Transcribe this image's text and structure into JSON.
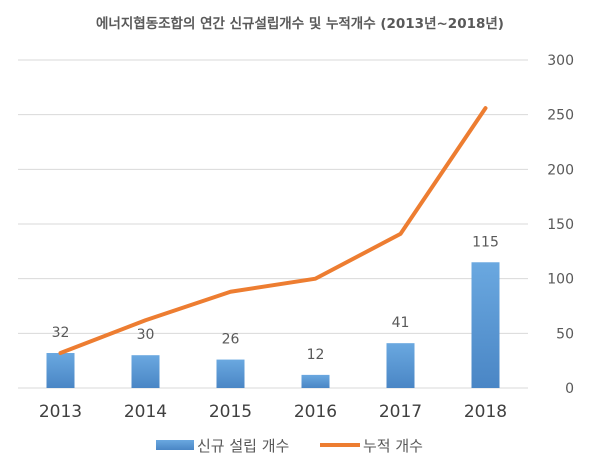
{
  "chart_data": {
    "type": "bar",
    "title": "에너지협동조합의 연간 신규설립개수 및 누적개수 (2013년~2018년)",
    "categories": [
      "2013",
      "2014",
      "2015",
      "2016",
      "2017",
      "2018"
    ],
    "series": [
      {
        "name": "신규 설립 개수",
        "type": "bar",
        "values": [
          32,
          30,
          26,
          12,
          41,
          115
        ],
        "color": "#5b9bd5"
      },
      {
        "name": "누적 개수",
        "type": "line",
        "values": [
          32,
          62,
          88,
          100,
          141,
          256
        ],
        "color": "#ed7d31"
      }
    ],
    "y_axis": {
      "position": "right",
      "range": [
        0,
        300
      ],
      "ticks": [
        "0",
        "50",
        "100",
        "150",
        "200",
        "250",
        "300"
      ]
    },
    "grid": true,
    "legend": "bottom"
  }
}
